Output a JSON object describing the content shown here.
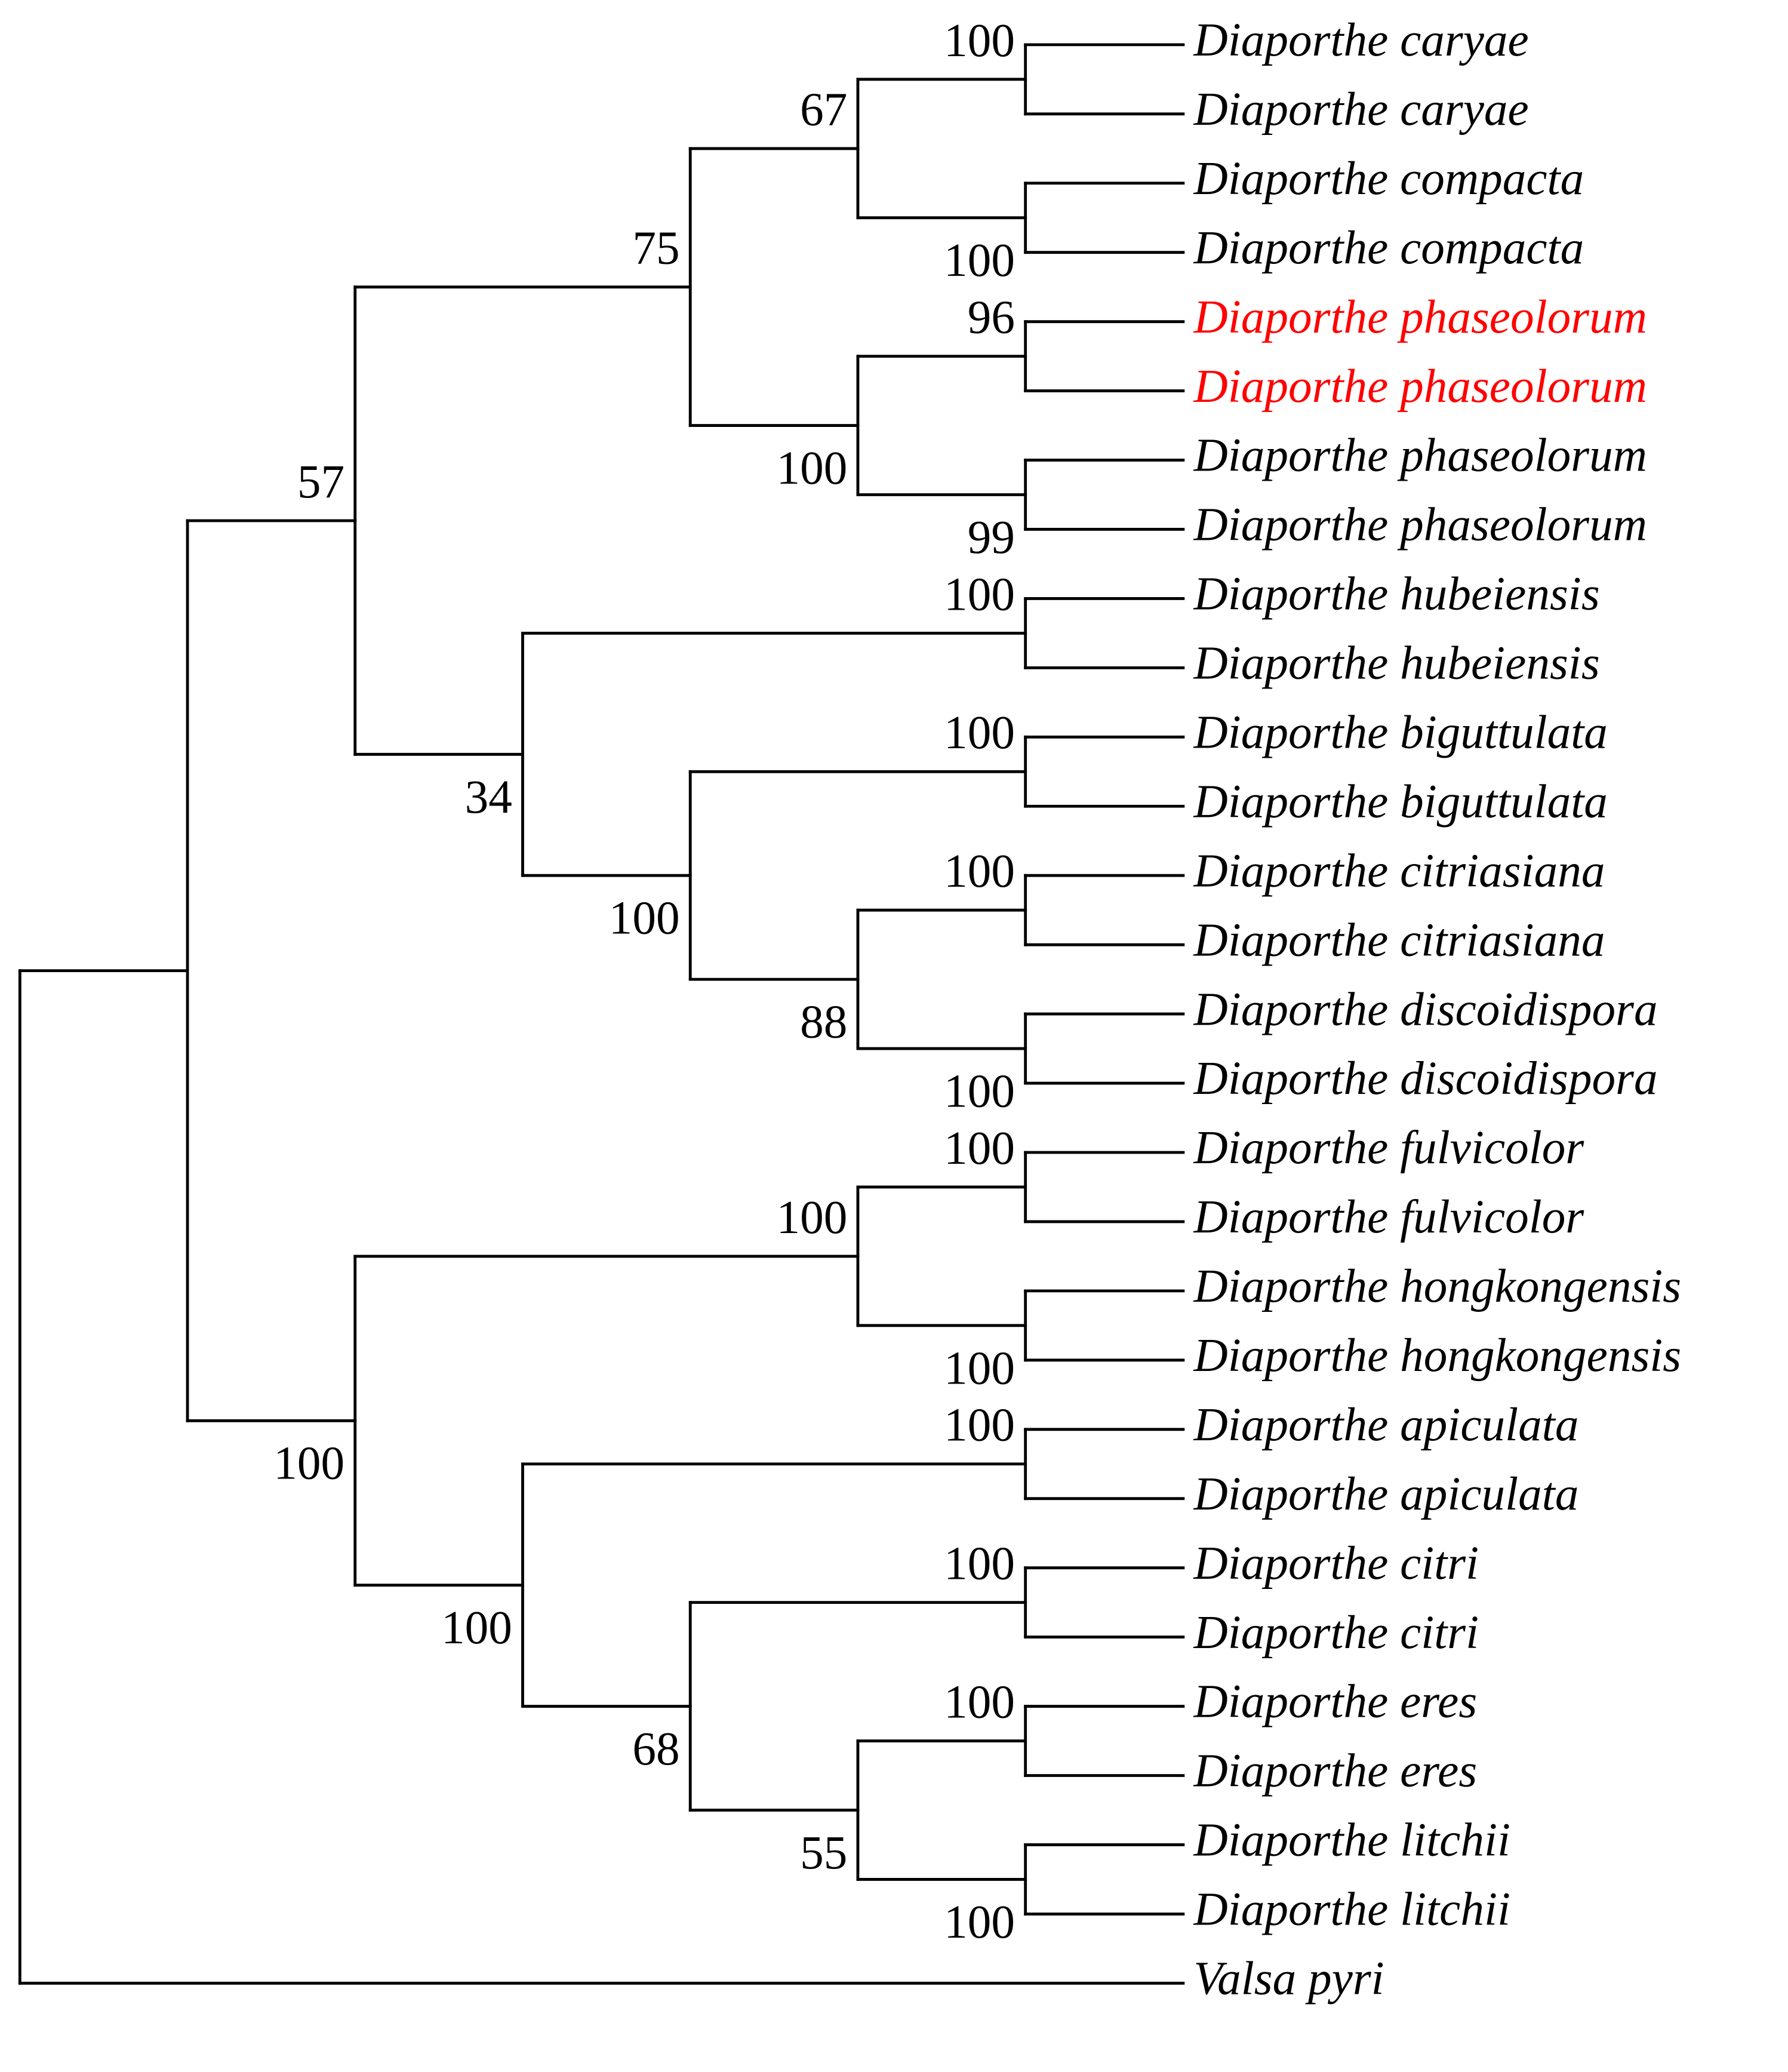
{
  "tree": {
    "children": [
      {
        "children": [
          {
            "support": 57,
            "children": [
              {
                "support": 75,
                "children": [
                  {
                    "support": 67,
                    "children": [
                      {
                        "support": 100,
                        "children": [
                          {
                            "label": "Diaporthe caryae"
                          },
                          {
                            "label": "Diaporthe caryae"
                          }
                        ]
                      },
                      {
                        "support": 100,
                        "children": [
                          {
                            "label": "Diaporthe compacta"
                          },
                          {
                            "label": "Diaporthe compacta"
                          }
                        ]
                      }
                    ]
                  },
                  {
                    "support": 100,
                    "children": [
                      {
                        "support": 96,
                        "children": [
                          {
                            "label": "Diaporthe phaseolorum",
                            "color": "#ff0000"
                          },
                          {
                            "label": "Diaporthe phaseolorum",
                            "color": "#ff0000"
                          }
                        ]
                      },
                      {
                        "support": 99,
                        "children": [
                          {
                            "label": "Diaporthe phaseolorum"
                          },
                          {
                            "label": "Diaporthe phaseolorum"
                          }
                        ]
                      }
                    ]
                  }
                ]
              },
              {
                "support": 34,
                "children": [
                  {
                    "support": 100,
                    "children": [
                      {
                        "label": "Diaporthe hubeiensis"
                      },
                      {
                        "label": "Diaporthe hubeiensis"
                      }
                    ]
                  },
                  {
                    "support": 100,
                    "children": [
                      {
                        "support": 100,
                        "children": [
                          {
                            "label": "Diaporthe biguttulata"
                          },
                          {
                            "label": "Diaporthe biguttulata"
                          }
                        ]
                      },
                      {
                        "support": 88,
                        "children": [
                          {
                            "support": 100,
                            "children": [
                              {
                                "label": "Diaporthe citriasiana"
                              },
                              {
                                "label": "Diaporthe citriasiana"
                              }
                            ]
                          },
                          {
                            "support": 100,
                            "children": [
                              {
                                "label": "Diaporthe discoidispora"
                              },
                              {
                                "label": "Diaporthe discoidispora"
                              }
                            ]
                          }
                        ]
                      }
                    ]
                  }
                ]
              }
            ]
          },
          {
            "support": 100,
            "children": [
              {
                "support": 100,
                "children": [
                  {
                    "support": 100,
                    "children": [
                      {
                        "label": "Diaporthe fulvicolor"
                      },
                      {
                        "label": "Diaporthe fulvicolor"
                      }
                    ]
                  },
                  {
                    "support": 100,
                    "children": [
                      {
                        "label": "Diaporthe hongkongensis"
                      },
                      {
                        "label": "Diaporthe hongkongensis"
                      }
                    ]
                  }
                ]
              },
              {
                "support": 100,
                "children": [
                  {
                    "support": 100,
                    "children": [
                      {
                        "label": "Diaporthe apiculata"
                      },
                      {
                        "label": "Diaporthe apiculata"
                      }
                    ]
                  },
                  {
                    "support": 68,
                    "children": [
                      {
                        "support": 100,
                        "children": [
                          {
                            "label": "Diaporthe citri"
                          },
                          {
                            "label": "Diaporthe citri"
                          }
                        ]
                      },
                      {
                        "support": 55,
                        "children": [
                          {
                            "support": 100,
                            "children": [
                              {
                                "label": "Diaporthe eres"
                              },
                              {
                                "label": "Diaporthe eres"
                              }
                            ]
                          },
                          {
                            "support": 100,
                            "children": [
                              {
                                "label": "Diaporthe litchii"
                              },
                              {
                                "label": "Diaporthe litchii"
                              }
                            ]
                          }
                        ]
                      }
                    ]
                  }
                ]
              }
            ]
          }
        ]
      },
      {
        "label": "Valsa pyri"
      }
    ]
  }
}
